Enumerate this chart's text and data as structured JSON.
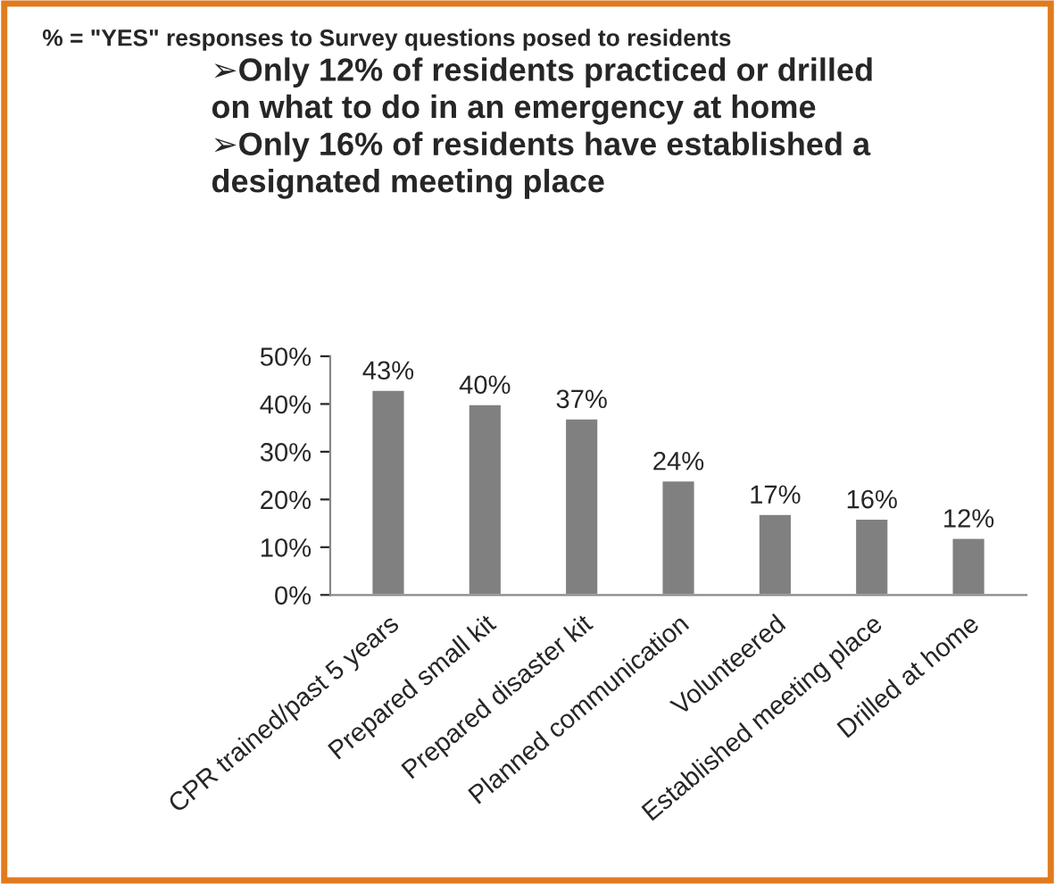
{
  "chart_data": {
    "type": "bar",
    "title": "% = \"YES\" responses to Survey questions posed to residents",
    "subtitle": "➢Only 12% of residents practiced or drilled\non what to do in an emergency at home\n➢Only 16% of residents have established a\ndesignated meeting place",
    "categories": [
      "CPR trained/past 5 years",
      "Prepared small kit",
      "Prepared disaster kit",
      "Planned communication",
      "Volunteered",
      "Established meeting place",
      "Drilled at home"
    ],
    "values": [
      43,
      40,
      37,
      24,
      17,
      16,
      12
    ],
    "value_labels": [
      "43%",
      "40%",
      "37%",
      "24%",
      "17%",
      "16%",
      "12%"
    ],
    "color": "#808080",
    "ylim": [
      0,
      50
    ],
    "yticks": [
      {
        "value": 0,
        "label": "0%"
      },
      {
        "value": 10,
        "label": "10%"
      },
      {
        "value": 20,
        "label": "20%"
      },
      {
        "value": 30,
        "label": "30%"
      },
      {
        "value": 40,
        "label": "40%"
      },
      {
        "value": 50,
        "label": "50%"
      }
    ],
    "grid": false,
    "legend": false
  }
}
